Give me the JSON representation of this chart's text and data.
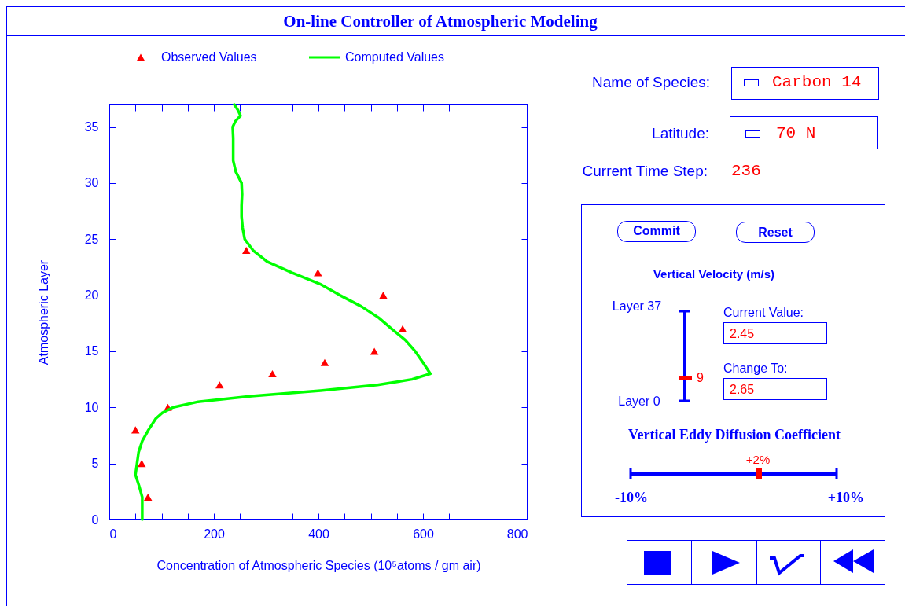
{
  "chart_data": [
    {
      "type": "line",
      "title": "On-line Controller of Atmospheric Modeling",
      "xlabel": "Concentration of Atmospheric Species (10⁵atoms / gm air)",
      "ylabel": "Atmospheric Layer",
      "xlim": [
        0,
        800
      ],
      "ylim": [
        0,
        37
      ],
      "xticks": [
        0,
        {
          "value": 50,
          "label": null
        },
        {
          "value": 100,
          "label": null
        },
        {
          "value": 150,
          "label": null
        },
        200,
        {
          "value": 250,
          "label": null
        },
        {
          "value": 300,
          "label": null
        },
        {
          "value": 350,
          "label": null
        },
        400,
        {
          "value": 450,
          "label": null
        },
        {
          "value": 500,
          "label": null
        },
        {
          "value": 550,
          "label": null
        },
        600,
        {
          "value": 650,
          "label": null
        },
        {
          "value": 700,
          "label": null
        },
        {
          "value": 750,
          "label": null
        },
        800
      ],
      "yticks": [
        0,
        5,
        10,
        15,
        20,
        25,
        30,
        35
      ],
      "grid": false,
      "legend": "top",
      "series": [
        {
          "name": "Observed Values",
          "type": "scatter",
          "color": "#ff0000",
          "marker": "triangle",
          "x": [
            74,
            62,
            50,
            112,
            211,
            312,
            412,
            507,
            561,
            524,
            399,
            262
          ],
          "values": [
            2,
            5,
            8,
            10,
            12,
            13,
            14,
            15,
            17,
            20,
            22,
            24
          ]
        },
        {
          "name": "Computed Values",
          "type": "line",
          "color": "#00ff00",
          "line_style": "solid",
          "x": [
            63,
            63,
            57,
            50,
            53,
            56,
            63,
            75,
            89,
            101,
            122,
            170,
            272,
            404,
            513,
            579,
            614,
            600,
            585,
            566,
            540,
            515,
            482,
            441,
            403,
            350,
            302,
            275,
            259,
            255,
            253,
            253,
            254,
            253,
            242,
            237,
            237,
            237,
            236,
            241,
            251,
            246,
            239
          ],
          "values": [
            0,
            2,
            3,
            4,
            5,
            6,
            7,
            8,
            9,
            9.5,
            10,
            10.5,
            11,
            11.5,
            12,
            12.5,
            13,
            14,
            15,
            16,
            17,
            18,
            19,
            20,
            21,
            22,
            23,
            24,
            25,
            26,
            27,
            28,
            29,
            30,
            31,
            32,
            33,
            34,
            35,
            35.5,
            36,
            36.5,
            37
          ]
        }
      ]
    },
    {
      "type": "other",
      "annotations": [
        "Name of Species:",
        "Carbon 14",
        "Latitude:",
        "70 N",
        "Current Time Step:",
        "236",
        "Commit",
        "Reset",
        "Vertical Velocity (m/s)",
        "Layer 37",
        "9",
        "Layer 0",
        "Current Value:",
        "2.45",
        "Change To:",
        "2.65",
        "Vertical Eddy Diffusion Coefficient",
        "+2%",
        "-10%",
        "+10%"
      ]
    }
  ]
}
